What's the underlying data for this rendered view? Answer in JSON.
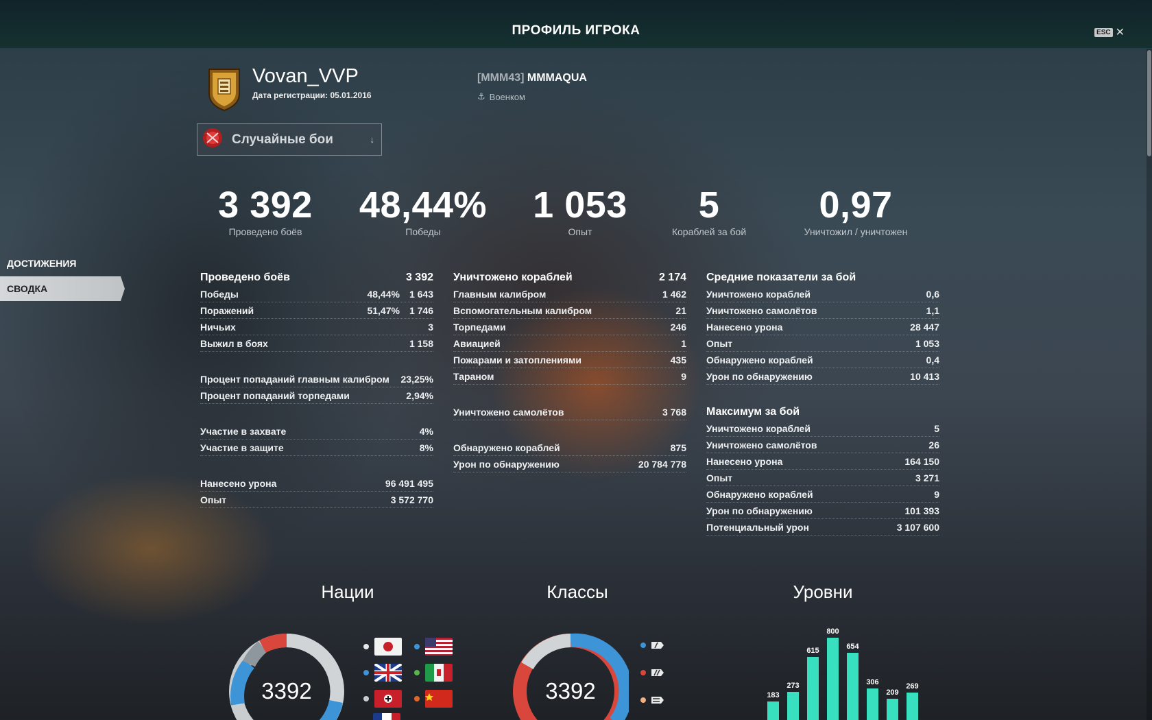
{
  "header": {
    "title": "ПРОФИЛЬ ИГРОКА",
    "esc_key": "ESC"
  },
  "player": {
    "name": "Vovan_VVP",
    "registration": "Дата регистрации: 05.01.2016"
  },
  "clan": {
    "tag": "[MMM43]",
    "name": "MMMAQUA",
    "role": "Военком"
  },
  "mode_selector": {
    "label": "Случайные бои"
  },
  "summary": [
    {
      "value": "3 392",
      "label": "Проведено боёв"
    },
    {
      "value": "48,44%",
      "label": "Победы"
    },
    {
      "value": "1 053",
      "label": "Опыт"
    },
    {
      "value": "5",
      "label": "Кораблей за бой"
    },
    {
      "value": "0,97",
      "label": "Уничтожил / уничтожен"
    }
  ],
  "nav": {
    "achievements": "ДОСТИЖЕНИЯ",
    "summary": "СВОДКА"
  },
  "battles": {
    "title": "Проведено боёв",
    "total": "3 392",
    "wins_label": "Победы",
    "wins_pct": "48,44%",
    "wins": "1 643",
    "losses_label": "Поражений",
    "losses_pct": "51,47%",
    "losses": "1 746",
    "draws_label": "Ничьих",
    "draws": "3",
    "survived_label": "Выжил в боях",
    "survived": "1 158",
    "main_hit_label": "Процент попаданий главным калибром",
    "main_hit": "23,25%",
    "torp_hit_label": "Процент попаданий торпедами",
    "torp_hit": "2,94%",
    "capture_label": "Участие в захвате",
    "capture": "4%",
    "defense_label": "Участие в защите",
    "defense": "8%",
    "damage_label": "Нанесено урона",
    "damage": "96 491 495",
    "xp_label": "Опыт",
    "xp": "3 572 770"
  },
  "destroyed": {
    "title": "Уничтожено кораблей",
    "total": "2 174",
    "main_label": "Главным калибром",
    "main": "1 462",
    "secondary_label": "Вспомогательным калибром",
    "secondary": "21",
    "torpedo_label": "Торпедами",
    "torpedo": "246",
    "aviation_label": "Авиацией",
    "aviation": "1",
    "fire_label": "Пожарами и затоплениями",
    "fire": "435",
    "ram_label": "Тараном",
    "ram": "9",
    "planes_label": "Уничтожено самолётов",
    "planes": "3 768",
    "spotted_label": "Обнаружено кораблей",
    "spotted": "875",
    "spot_dmg_label": "Урон по обнаружению",
    "spot_dmg": "20 784 778"
  },
  "average": {
    "title": "Средние показатели за бой",
    "rows": [
      {
        "label": "Уничтожено кораблей",
        "value": "0,6"
      },
      {
        "label": "Уничтожено самолётов",
        "value": "1,1"
      },
      {
        "label": "Нанесено урона",
        "value": "28 447"
      },
      {
        "label": "Опыт",
        "value": "1 053"
      },
      {
        "label": "Обнаружено кораблей",
        "value": "0,4"
      },
      {
        "label": "Урон по обнаружению",
        "value": "10 413"
      }
    ]
  },
  "maximum": {
    "title": "Максимум за бой",
    "rows": [
      {
        "label": "Уничтожено кораблей",
        "value": "5"
      },
      {
        "label": "Уничтожено самолётов",
        "value": "26"
      },
      {
        "label": "Нанесено урона",
        "value": "164 150"
      },
      {
        "label": "Опыт",
        "value": "3 271"
      },
      {
        "label": "Обнаружено кораблей",
        "value": "9"
      },
      {
        "label": "Урон по обнаружению",
        "value": "101 393"
      },
      {
        "label": "Потенциальный урон",
        "value": "3 107 600"
      }
    ]
  },
  "charts": {
    "nations_title": "Нации",
    "classes_title": "Классы",
    "tiers_title": "Уровни",
    "nations_total": "3392",
    "classes_total": "3392"
  },
  "chart_data": {
    "type": "bar",
    "values": [
      183,
      273,
      615,
      800,
      654,
      306,
      209,
      269
    ],
    "color": "#39e0c0"
  },
  "colors": {
    "accent_teal": "#39e0c0",
    "blue": "#3d95d8",
    "red": "#d9463b",
    "grey": "#c9cdd0"
  }
}
